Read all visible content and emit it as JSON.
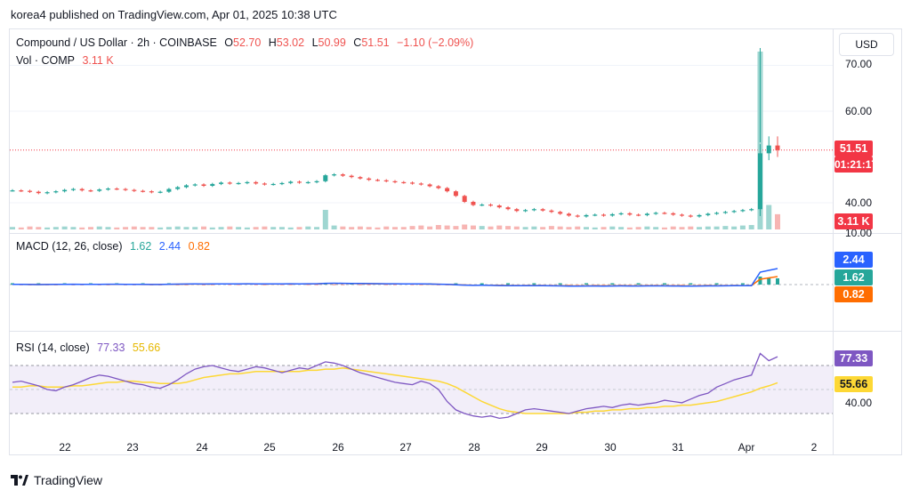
{
  "header": {
    "publisher": "korea4 published on TradingView.com, Apr 01, 2025 10:38 UTC"
  },
  "main": {
    "symbol": "Compound / US Dollar · 2h · COINBASE",
    "o_label": "O",
    "o": "52.70",
    "h_label": "H",
    "h": "53.02",
    "l_label": "L",
    "l": "50.99",
    "c_label": "C",
    "c": "51.51",
    "change": "−1.10 (−2.09%)",
    "vol_label": "Vol · COMP",
    "vol": "3.11 K",
    "currency": "USD",
    "price_ticks": [
      "70.00",
      "60.00",
      "40.00",
      "10.00"
    ],
    "price_tag": "51.51",
    "countdown_tag": "01:21:17",
    "volume_tag": "3.11 K"
  },
  "macd": {
    "label": "MACD (12, 26, close)",
    "macd": "1.62",
    "signal": "2.44",
    "hist": "0.82",
    "tag_signal": "2.44",
    "tag_macd": "1.62",
    "tag_hist": "0.82"
  },
  "rsi": {
    "label": "RSI (14, close)",
    "rsi": "77.33",
    "ma": "55.66",
    "tick": "40.00",
    "tag_rsi": "77.33",
    "tag_ma": "55.66"
  },
  "x_axis": [
    "22",
    "23",
    "24",
    "25",
    "26",
    "27",
    "28",
    "29",
    "30",
    "31",
    "Apr",
    "2"
  ],
  "footer": {
    "brand": "TradingView"
  },
  "colors": {
    "up": "#26a69a",
    "down": "#ef5350",
    "macd": "#2962ff",
    "signal": "#ff6d00",
    "rsi": "#7e57c2",
    "rsi_ma": "#fdd835"
  },
  "chart_data": {
    "type": "candlestick",
    "title": "Compound / US Dollar · 2h · COINBASE",
    "price_axis": [
      10,
      70
    ],
    "price_closes": [
      42.7,
      42.6,
      42.4,
      42.1,
      42.3,
      42.5,
      42.8,
      43.0,
      42.7,
      42.6,
      42.9,
      43.1,
      43.0,
      42.8,
      42.6,
      42.5,
      42.3,
      42.4,
      43.0,
      43.4,
      43.8,
      44.0,
      43.7,
      44.1,
      44.4,
      44.2,
      44.3,
      44.5,
      44.2,
      44.0,
      44.1,
      44.3,
      44.6,
      44.4,
      44.5,
      44.7,
      46.0,
      46.2,
      45.9,
      45.6,
      45.3,
      45.0,
      44.9,
      44.7,
      44.5,
      44.4,
      44.2,
      44.0,
      43.6,
      43.2,
      42.5,
      41.5,
      40.2,
      39.5,
      39.6,
      39.4,
      39.0,
      38.6,
      38.2,
      38.4,
      38.6,
      38.3,
      38.0,
      37.6,
      37.2,
      37.0,
      37.3,
      37.4,
      37.2,
      37.5,
      37.7,
      37.4,
      37.3,
      37.6,
      37.8,
      37.7,
      37.4,
      37.2,
      37.0,
      37.3,
      37.6,
      37.8,
      38.0,
      38.2,
      38.4,
      38.6,
      50.8,
      52.5,
      51.5
    ],
    "volume_values_k": [
      0.5,
      0.4,
      0.6,
      0.5,
      0.4,
      0.5,
      0.6,
      0.5,
      0.4,
      0.5,
      0.6,
      0.5,
      0.4,
      0.5,
      0.6,
      0.5,
      0.5,
      0.4,
      0.5,
      0.6,
      0.5,
      0.5,
      0.6,
      0.4,
      0.5,
      0.6,
      0.5,
      0.4,
      0.5,
      0.6,
      0.5,
      0.5,
      0.4,
      0.5,
      0.6,
      0.5,
      4.0,
      0.8,
      0.6,
      0.5,
      0.6,
      0.5,
      0.4,
      0.6,
      0.5,
      0.5,
      0.7,
      0.8,
      0.6,
      0.9,
      0.8,
      0.7,
      1.0,
      0.8,
      0.7,
      0.6,
      0.8,
      0.7,
      0.6,
      0.5,
      0.6,
      0.5,
      0.7,
      0.6,
      0.5,
      0.6,
      0.5,
      0.4,
      0.5,
      0.6,
      0.5,
      0.4,
      0.5,
      0.6,
      0.5,
      0.4,
      0.6,
      0.5,
      0.6,
      0.5,
      0.6,
      0.6,
      0.7,
      0.6,
      0.8,
      0.9,
      25.0,
      5.0,
      3.11
    ],
    "macd": {
      "macd_line": 1.62,
      "signal_line": 2.44,
      "histogram": 0.82
    },
    "rsi": {
      "rsi_values": [
        56,
        57,
        55,
        53,
        50,
        49,
        52,
        54,
        57,
        60,
        62,
        61,
        59,
        57,
        55,
        54,
        52,
        51,
        54,
        58,
        63,
        67,
        69,
        70,
        68,
        66,
        65,
        67,
        69,
        68,
        66,
        64,
        66,
        68,
        67,
        70,
        73,
        72,
        70,
        67,
        64,
        62,
        60,
        58,
        56,
        55,
        54,
        57,
        55,
        50,
        40,
        33,
        30,
        28,
        27,
        28,
        26,
        27,
        30,
        33,
        34,
        33,
        32,
        31,
        30,
        32,
        34,
        35,
        36,
        35,
        37,
        38,
        37,
        38,
        39,
        41,
        40,
        39,
        42,
        45,
        47,
        52,
        55,
        58,
        60,
        62,
        80,
        74,
        77.33
      ],
      "ma_values": [
        52,
        52,
        53,
        53,
        52,
        52,
        52,
        53,
        53,
        54,
        55,
        56,
        56,
        57,
        57,
        56,
        56,
        55,
        55,
        55,
        56,
        58,
        60,
        61,
        62,
        63,
        63,
        64,
        65,
        65,
        65,
        65,
        65,
        65,
        66,
        66,
        67,
        67,
        68,
        67,
        66,
        65,
        64,
        63,
        62,
        61,
        60,
        59,
        58,
        57,
        55,
        52,
        48,
        44,
        40,
        37,
        34,
        32,
        31,
        30,
        30,
        30,
        30,
        30,
        30,
        31,
        31,
        32,
        32,
        33,
        33,
        34,
        34,
        35,
        35,
        36,
        36,
        37,
        37,
        38,
        39,
        40,
        42,
        44,
        46,
        48,
        51,
        53,
        55.66
      ],
      "levels": [
        70,
        30
      ]
    },
    "x_labels": [
      "22",
      "23",
      "24",
      "25",
      "26",
      "27",
      "28",
      "29",
      "30",
      "31",
      "Apr",
      "2"
    ]
  }
}
